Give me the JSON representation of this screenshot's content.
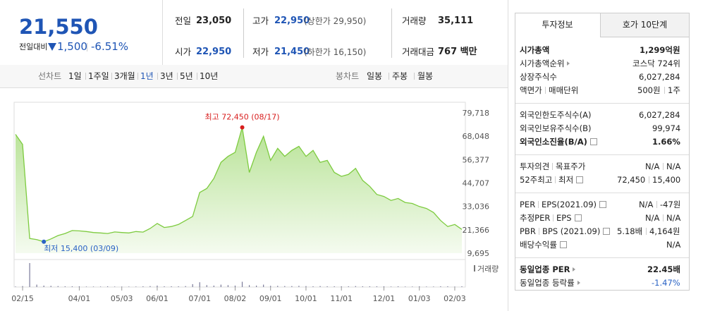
{
  "quote": {
    "price": "21,550",
    "change_label": "전일대비",
    "change": "1,500",
    "change_rate": "-6.51%"
  },
  "summary": {
    "rows": [
      [
        {
          "label": "전일",
          "value": "23,050"
        },
        {
          "label": "고가",
          "value": "22,950",
          "note": "(상한가 29,950)"
        },
        {
          "label": "거래량",
          "value": "35,111"
        }
      ],
      [
        {
          "label": "시가",
          "value": "22,950"
        },
        {
          "label": "저가",
          "value": "21,450",
          "note": "(하한가 16,150)"
        },
        {
          "label": "거래대금",
          "value": "767 백만"
        }
      ]
    ]
  },
  "periods": {
    "line_label": "선차트",
    "line": [
      "1일",
      "1주일",
      "3개월",
      "1년",
      "3년",
      "5년",
      "10년"
    ],
    "selected": 3,
    "candle_label": "봉차트",
    "candle": [
      "일봉",
      "주봉",
      "월봉"
    ]
  },
  "chart": {
    "type": "area",
    "color": "#7dcb3f",
    "categories": [
      null,
      "02/15",
      null,
      null,
      null,
      null,
      null,
      null,
      null,
      "04/01",
      null,
      null,
      null,
      null,
      null,
      "05/03",
      null,
      null,
      null,
      null,
      "06/01",
      null,
      null,
      null,
      null,
      null,
      "07/01",
      null,
      null,
      null,
      null,
      "08/02",
      null,
      null,
      null,
      null,
      "09/01",
      null,
      null,
      null,
      null,
      "10/01",
      null,
      null,
      null,
      null,
      "11/01",
      null,
      null,
      null,
      null,
      null,
      "12/01",
      null,
      null,
      null,
      null,
      "01/03",
      null,
      null,
      null,
      null,
      "02/03",
      null
    ],
    "values": [
      69000,
      64000,
      17000,
      16500,
      15400,
      16800,
      18500,
      19500,
      21000,
      20800,
      20500,
      20000,
      19800,
      19500,
      20300,
      20000,
      19800,
      20500,
      20200,
      22000,
      24500,
      22500,
      23000,
      24000,
      26000,
      28000,
      40000,
      42000,
      47000,
      55000,
      58000,
      60000,
      72450,
      50000,
      60000,
      68000,
      56000,
      62000,
      58000,
      61000,
      63000,
      58000,
      61000,
      55000,
      56000,
      50000,
      48000,
      49000,
      52000,
      46000,
      43000,
      39000,
      38000,
      36000,
      37000,
      35000,
      34500,
      33000,
      32000,
      30000,
      26000,
      23000,
      24000,
      21550
    ],
    "ylim": [
      9695,
      79718
    ],
    "yticks": [
      {
        "value": 79718,
        "label": "79,718"
      },
      {
        "value": 68048,
        "label": "68,048"
      },
      {
        "value": 56377,
        "label": "56,377"
      },
      {
        "value": 44707,
        "label": "44,707"
      },
      {
        "value": 33036,
        "label": "33,036"
      },
      {
        "value": 21366,
        "label": "21,366"
      },
      {
        "value": 9695,
        "label": "9,695"
      }
    ],
    "high_label": "최고 72,450 (08/17)",
    "low_label": "최저 15,400 (03/09)",
    "volume_label": "거래량",
    "volume_ylim": [
      0,
      100
    ],
    "volume": [
      2,
      4,
      100,
      10,
      6,
      5,
      4,
      3,
      3,
      3,
      2,
      2,
      2,
      3,
      2,
      2,
      2,
      2,
      3,
      4,
      6,
      3,
      3,
      3,
      4,
      12,
      20,
      8,
      6,
      10,
      8,
      6,
      22,
      8,
      6,
      10,
      5,
      5,
      4,
      4,
      5,
      4,
      3,
      4,
      3,
      3,
      3,
      3,
      4,
      3,
      3,
      3,
      3,
      2,
      3,
      2,
      2,
      3,
      2,
      2,
      3,
      3,
      2,
      3
    ]
  },
  "tabs": {
    "items": [
      "투자정보",
      "호가 10단계"
    ],
    "selected": 0
  },
  "info": {
    "groups": [
      [
        {
          "labels": [
            "시가총액"
          ],
          "values": [
            "1,299억원"
          ],
          "bold": true
        },
        {
          "labels": [
            "시가총액순위"
          ],
          "arrow": true,
          "values": [
            "코스닥 724위"
          ]
        },
        {
          "labels": [
            "상장주식수"
          ],
          "values": [
            "6,027,284"
          ]
        },
        {
          "labels": [
            "액면가",
            "매매단위"
          ],
          "values": [
            "500원",
            "1주"
          ]
        }
      ],
      [
        {
          "labels": [
            "외국인한도주식수(A)"
          ],
          "values": [
            "6,027,284"
          ]
        },
        {
          "labels": [
            "외국인보유주식수(B)"
          ],
          "values": [
            "99,974"
          ]
        },
        {
          "labels": [
            "외국인소진율(B/A)"
          ],
          "help": true,
          "values": [
            "1.66%"
          ],
          "bold": true
        }
      ],
      [
        {
          "labels": [
            "투자의견",
            "목표주가"
          ],
          "values": [
            "N/A",
            "N/A"
          ]
        },
        {
          "labels": [
            "52주최고",
            "최저"
          ],
          "help": true,
          "values": [
            "72,450",
            "15,400"
          ]
        }
      ],
      [
        {
          "labels": [
            "PER",
            "EPS(2021.09)"
          ],
          "help": true,
          "values": [
            "N/A",
            "-47원"
          ]
        },
        {
          "labels": [
            "추정PER",
            "EPS"
          ],
          "help": true,
          "values": [
            "N/A",
            "N/A"
          ]
        },
        {
          "labels": [
            "PBR",
            "BPS (2021.09)"
          ],
          "help": true,
          "values": [
            "5.18배",
            "4,164원"
          ]
        },
        {
          "labels": [
            "배당수익률"
          ],
          "help": true,
          "values": [
            "N/A"
          ]
        }
      ],
      [
        {
          "labels": [
            "동일업종 PER"
          ],
          "arrow": true,
          "values": [
            "22.45배"
          ],
          "bold": true
        },
        {
          "labels": [
            "동일업종 등락률"
          ],
          "arrow": true,
          "values": [
            "-1.47%"
          ],
          "color": "#2a63c5"
        }
      ]
    ]
  }
}
